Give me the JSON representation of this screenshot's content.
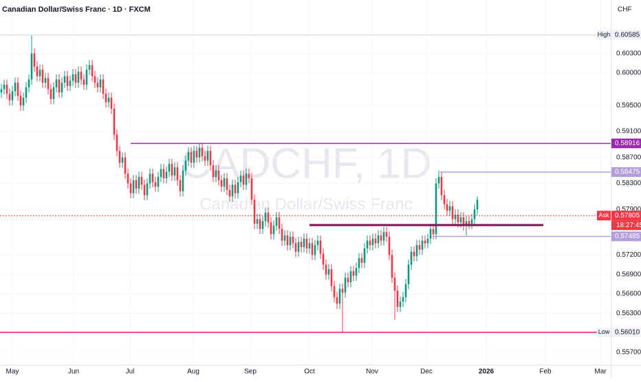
{
  "chart_data": {
    "type": "candlestick",
    "title": "Canadian Dollar/Swiss Franc · 1D · FXCM",
    "watermark": "CADCHF, 1D",
    "watermark_subtitle": "Canadian Dollar/Swiss Franc",
    "currency": "CHF",
    "up_color": "#089981",
    "down_color": "#f23645",
    "open": [
      0.597,
      0.5975,
      0.5982,
      0.5968,
      0.5958,
      0.5972,
      0.5985,
      0.5965,
      0.595,
      0.5962,
      0.5978,
      0.599,
      0.603,
      0.601,
      0.5995,
      0.6005,
      0.5985,
      0.5992,
      0.5975,
      0.596,
      0.5978,
      0.599,
      0.597,
      0.5985,
      0.5995,
      0.598,
      0.5988,
      0.5998,
      0.5985,
      0.6002,
      0.599,
      0.5982,
      0.6005,
      0.6012,
      0.5995,
      0.5985,
      0.5978,
      0.599,
      0.5968,
      0.5955,
      0.5962,
      0.5945,
      0.5905,
      0.588,
      0.5862,
      0.587,
      0.5845,
      0.583,
      0.5815,
      0.5835,
      0.5822,
      0.584,
      0.5828,
      0.5812,
      0.583,
      0.5845,
      0.5832,
      0.5825,
      0.584,
      0.5852,
      0.5838,
      0.5848,
      0.586,
      0.5842,
      0.5855,
      0.5835,
      0.5818,
      0.585,
      0.5865,
      0.5878,
      0.5862,
      0.588,
      0.587,
      0.5885,
      0.5872,
      0.5865,
      0.588,
      0.5858,
      0.584,
      0.585,
      0.5835,
      0.5825,
      0.5838,
      0.582,
      0.581,
      0.5828,
      0.5815,
      0.5832,
      0.5842,
      0.5828,
      0.5845,
      0.5838,
      0.5805,
      0.5768,
      0.5775,
      0.576,
      0.5772,
      0.5785,
      0.577,
      0.5752,
      0.5765,
      0.5778,
      0.576,
      0.5742,
      0.575,
      0.5735,
      0.5748,
      0.5738,
      0.5725,
      0.574,
      0.5732,
      0.5745,
      0.573,
      0.5738,
      0.572,
      0.5735,
      0.5742,
      0.5722,
      0.5705,
      0.569,
      0.5698,
      0.5672,
      0.5655,
      0.5645,
      0.5668,
      0.5662,
      0.5685,
      0.5678,
      0.5695,
      0.5688,
      0.57,
      0.5715,
      0.5708,
      0.573,
      0.5742,
      0.5735,
      0.5745,
      0.5738,
      0.575,
      0.5742,
      0.5755,
      0.5748,
      0.572,
      0.5685,
      0.5665,
      0.564,
      0.5648,
      0.5655,
      0.5675,
      0.5705,
      0.5725,
      0.5718,
      0.5735,
      0.5728,
      0.5742,
      0.5738,
      0.5745,
      0.576,
      0.5752,
      0.583,
      0.584,
      0.5812,
      0.5798,
      0.5788,
      0.5795,
      0.5775,
      0.5782,
      0.577,
      0.5778,
      0.5765,
      0.5772,
      0.5768,
      0.5775,
      0.579
    ],
    "high": [
      0.5983,
      0.599,
      0.599,
      0.5976,
      0.598,
      0.5993,
      0.5993,
      0.5973,
      0.597,
      0.5986,
      0.5998,
      0.60585,
      0.6038,
      0.6018,
      0.6013,
      0.6013,
      0.6,
      0.6,
      0.5983,
      0.5986,
      0.5998,
      0.5998,
      0.5993,
      0.6003,
      0.6003,
      0.5996,
      0.6006,
      0.6006,
      0.601,
      0.601,
      0.5998,
      0.6013,
      0.602,
      0.602,
      0.6003,
      0.5993,
      0.5998,
      0.5998,
      0.5976,
      0.597,
      0.597,
      0.5953,
      0.5913,
      0.5888,
      0.5878,
      0.5878,
      0.5853,
      0.5838,
      0.5843,
      0.5843,
      0.5848,
      0.5848,
      0.5836,
      0.5838,
      0.5853,
      0.5853,
      0.584,
      0.5848,
      0.586,
      0.586,
      0.5856,
      0.5868,
      0.5868,
      0.5863,
      0.5863,
      0.5843,
      0.5858,
      0.5873,
      0.5886,
      0.5886,
      0.5888,
      0.5888,
      0.5891,
      0.5891,
      0.588,
      0.5888,
      0.5888,
      0.5866,
      0.5858,
      0.5858,
      0.5843,
      0.5846,
      0.5846,
      0.5828,
      0.5836,
      0.5836,
      0.584,
      0.585,
      0.585,
      0.5853,
      0.5853,
      0.5846,
      0.5813,
      0.5783,
      0.5783,
      0.578,
      0.5793,
      0.5793,
      0.5778,
      0.5773,
      0.5786,
      0.5786,
      0.5768,
      0.5758,
      0.5758,
      0.5756,
      0.5756,
      0.5746,
      0.5748,
      0.5748,
      0.5753,
      0.5753,
      0.5746,
      0.5746,
      0.5743,
      0.575,
      0.575,
      0.573,
      0.5713,
      0.5706,
      0.5706,
      0.568,
      0.5663,
      0.5676,
      0.5676,
      0.5693,
      0.5693,
      0.5703,
      0.5703,
      0.5708,
      0.5723,
      0.5723,
      0.5738,
      0.575,
      0.575,
      0.5753,
      0.5753,
      0.5758,
      0.5758,
      0.5763,
      0.5763,
      0.5756,
      0.5728,
      0.5693,
      0.5673,
      0.5656,
      0.5663,
      0.5683,
      0.5713,
      0.5733,
      0.5733,
      0.5743,
      0.5743,
      0.575,
      0.575,
      0.5753,
      0.5768,
      0.5768,
      0.5838,
      0.585,
      0.5848,
      0.582,
      0.5806,
      0.5803,
      0.5803,
      0.579,
      0.579,
      0.5786,
      0.5786,
      0.578,
      0.578,
      0.5783,
      0.5798,
      0.581
    ],
    "low": [
      0.5962,
      0.5967,
      0.596,
      0.595,
      0.595,
      0.5964,
      0.5957,
      0.5942,
      0.5942,
      0.5954,
      0.597,
      0.5982,
      0.6002,
      0.5987,
      0.5987,
      0.5977,
      0.5977,
      0.5967,
      0.5952,
      0.5952,
      0.597,
      0.5962,
      0.5962,
      0.5977,
      0.5972,
      0.5972,
      0.598,
      0.5977,
      0.5977,
      0.5982,
      0.5974,
      0.5974,
      0.5997,
      0.5987,
      0.5977,
      0.597,
      0.597,
      0.596,
      0.5947,
      0.5947,
      0.5937,
      0.5897,
      0.5872,
      0.5854,
      0.5854,
      0.5837,
      0.5822,
      0.5807,
      0.5807,
      0.5814,
      0.5814,
      0.582,
      0.5804,
      0.5804,
      0.5822,
      0.5824,
      0.5817,
      0.5817,
      0.5832,
      0.583,
      0.583,
      0.584,
      0.5834,
      0.5834,
      0.5827,
      0.581,
      0.581,
      0.5842,
      0.5857,
      0.5854,
      0.5854,
      0.5862,
      0.5862,
      0.5864,
      0.5857,
      0.5857,
      0.585,
      0.5832,
      0.5832,
      0.5827,
      0.5817,
      0.5817,
      0.5812,
      0.5802,
      0.5802,
      0.5807,
      0.5807,
      0.5824,
      0.582,
      0.582,
      0.583,
      0.5797,
      0.576,
      0.576,
      0.5752,
      0.5752,
      0.5764,
      0.5762,
      0.5744,
      0.5744,
      0.5757,
      0.5752,
      0.5734,
      0.5734,
      0.5727,
      0.5727,
      0.573,
      0.5717,
      0.5717,
      0.5724,
      0.5724,
      0.5722,
      0.5722,
      0.5712,
      0.5712,
      0.5727,
      0.5714,
      0.5697,
      0.5682,
      0.5682,
      0.5664,
      0.5647,
      0.5637,
      0.5637,
      0.5601,
      0.5654,
      0.567,
      0.567,
      0.568,
      0.568,
      0.5692,
      0.57,
      0.57,
      0.5722,
      0.5727,
      0.5727,
      0.573,
      0.573,
      0.5734,
      0.5734,
      0.574,
      0.5712,
      0.5677,
      0.562,
      0.5632,
      0.5632,
      0.564,
      0.5647,
      0.5667,
      0.5697,
      0.571,
      0.571,
      0.572,
      0.572,
      0.573,
      0.573,
      0.5737,
      0.5744,
      0.5744,
      0.5822,
      0.5804,
      0.579,
      0.578,
      0.578,
      0.5767,
      0.5767,
      0.5762,
      0.5762,
      0.5757,
      0.575,
      0.576,
      0.576,
      0.5767,
      0.5782
    ],
    "close": [
      0.5975,
      0.5982,
      0.5968,
      0.5958,
      0.5972,
      0.5985,
      0.5965,
      0.595,
      0.5962,
      0.5978,
      0.599,
      0.603,
      0.601,
      0.5995,
      0.6005,
      0.5985,
      0.5992,
      0.5975,
      0.596,
      0.5978,
      0.599,
      0.597,
      0.5985,
      0.5995,
      0.598,
      0.5988,
      0.5998,
      0.5985,
      0.6002,
      0.599,
      0.5982,
      0.6005,
      0.6012,
      0.5995,
      0.5985,
      0.5978,
      0.599,
      0.5968,
      0.5955,
      0.5962,
      0.5945,
      0.5905,
      0.588,
      0.5862,
      0.587,
      0.5845,
      0.583,
      0.5815,
      0.5835,
      0.5822,
      0.584,
      0.5828,
      0.5812,
      0.583,
      0.5845,
      0.5832,
      0.5825,
      0.584,
      0.5852,
      0.5838,
      0.5848,
      0.586,
      0.5842,
      0.5855,
      0.5835,
      0.5818,
      0.585,
      0.5865,
      0.5878,
      0.5862,
      0.588,
      0.587,
      0.5885,
      0.5872,
      0.5865,
      0.588,
      0.5858,
      0.584,
      0.585,
      0.5835,
      0.5825,
      0.5838,
      0.582,
      0.581,
      0.5828,
      0.5815,
      0.5832,
      0.5842,
      0.5828,
      0.5845,
      0.5838,
      0.5805,
      0.5768,
      0.5775,
      0.576,
      0.5772,
      0.5785,
      0.577,
      0.5752,
      0.5765,
      0.5778,
      0.576,
      0.5742,
      0.575,
      0.5735,
      0.5748,
      0.5738,
      0.5725,
      0.574,
      0.5732,
      0.5745,
      0.573,
      0.5738,
      0.572,
      0.5735,
      0.5742,
      0.5722,
      0.5705,
      0.569,
      0.5698,
      0.5672,
      0.5655,
      0.5645,
      0.5668,
      0.5662,
      0.5685,
      0.5678,
      0.5695,
      0.5688,
      0.57,
      0.5715,
      0.5708,
      0.573,
      0.5742,
      0.5735,
      0.5745,
      0.5738,
      0.575,
      0.5742,
      0.5755,
      0.5748,
      0.572,
      0.5685,
      0.5665,
      0.564,
      0.5648,
      0.5655,
      0.5675,
      0.5705,
      0.5725,
      0.5718,
      0.5735,
      0.5728,
      0.5742,
      0.5738,
      0.5745,
      0.576,
      0.5752,
      0.583,
      0.584,
      0.5812,
      0.5798,
      0.5788,
      0.5795,
      0.5775,
      0.5782,
      0.577,
      0.5778,
      0.5765,
      0.5772,
      0.5768,
      0.5775,
      0.579,
      0.5805
    ],
    "xlim": [
      -0.5,
      221.5
    ],
    "xticks": [
      {
        "value": 4,
        "label": "May"
      },
      {
        "value": 26.25,
        "label": "Jun"
      },
      {
        "value": 46.75,
        "label": "Jul"
      },
      {
        "value": 69.75,
        "label": "Aug"
      },
      {
        "value": 90.5,
        "label": "Sep"
      },
      {
        "value": 112,
        "label": "Oct"
      },
      {
        "value": 134.75,
        "label": "Nov"
      },
      {
        "value": 154.5,
        "label": "Dec"
      },
      {
        "value": 176.25,
        "label": "2026"
      },
      {
        "value": 197.75,
        "label": "Feb"
      },
      {
        "value": 217.75,
        "label": "Mar"
      }
    ],
    "ylim": [
      0.55509,
      0.61123
    ],
    "yticks": [
      {
        "value": 0.603,
        "label": "0.60300"
      },
      {
        "value": 0.6,
        "label": "0.60000"
      },
      {
        "value": 0.595,
        "label": "0.59500"
      },
      {
        "value": 0.591,
        "label": "0.59100"
      },
      {
        "value": 0.587,
        "label": "0.58700"
      },
      {
        "value": 0.583,
        "label": "0.58300"
      },
      {
        "value": 0.579,
        "label": "0.57900"
      },
      {
        "value": 0.572,
        "label": "0.57200"
      },
      {
        "value": 0.569,
        "label": "0.56900"
      },
      {
        "value": 0.566,
        "label": "0.56600"
      },
      {
        "value": 0.563,
        "label": "0.56300"
      },
      {
        "value": 0.557,
        "label": "0.55700"
      }
    ],
    "levels": [
      {
        "value": 0.60585,
        "tag": "High",
        "line_color": "#e0e3eb",
        "box_color": "#f0f3fa",
        "text_color": "#131722"
      },
      {
        "value": 0.58916,
        "from": 47,
        "line_color": "#9c27b0",
        "box_color": "#9c27b0",
        "text_color": "#ffffff"
      },
      {
        "value": 0.58475,
        "from": 159.5,
        "line_color": "#b39ddb",
        "box_color": "#b39ddb",
        "text_color": "#ffffff"
      },
      {
        "value": 0.57805,
        "tag": "Ask",
        "countdown": "18:27:45",
        "dashed": true,
        "line_color": "#f23645",
        "box_color": "#f23645",
        "text_color": "#ffffff"
      },
      {
        "value": 0.57485,
        "from": 157,
        "line_color": "#b39ddb",
        "box_color": "#b39ddb",
        "text_color": "#ffffff"
      },
      {
        "value": 0.5601,
        "label": "0.56010",
        "tag": "Low",
        "line_color": "#e91e63",
        "box_color": "#f0f3fa",
        "text_color": "#131722"
      }
    ],
    "segments": [
      {
        "value": 0.57659,
        "from": 112,
        "to": 197,
        "color": "#880e4f"
      }
    ]
  }
}
